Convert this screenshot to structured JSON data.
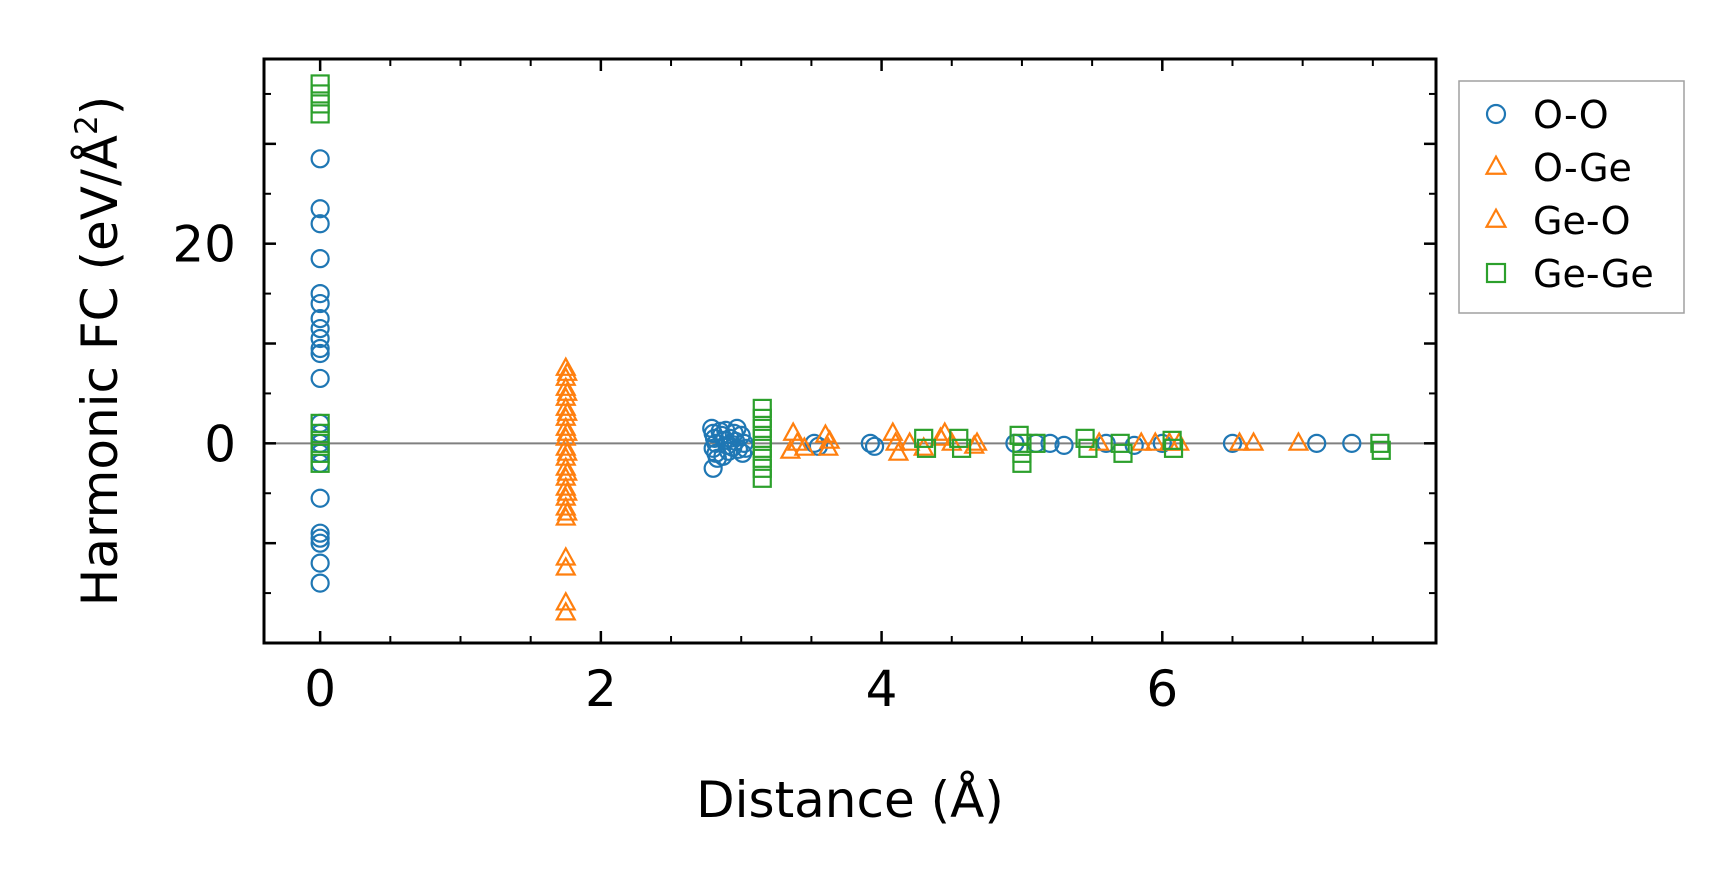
{
  "chart_data": {
    "type": "scatter",
    "title": "",
    "xlabel": "Distance (Å)",
    "ylabel_main": "Harmonic FC (eV/Å",
    "ylabel_sup": "2",
    "ylabel_tail": ")",
    "xlim": [
      -0.4,
      7.95
    ],
    "ylim": [
      -20,
      38.5
    ],
    "x_ticks": [
      0,
      2,
      4,
      6
    ],
    "x_tick_labels": [
      "0",
      "2",
      "4",
      "6"
    ],
    "y_ticks": [
      -10,
      0,
      10,
      20,
      30
    ],
    "y_tick_labels": [
      "",
      "0",
      "",
      "20",
      ""
    ],
    "x_minor_step": 0.5,
    "y_minor_step": 5,
    "grid": false,
    "zero_line": true,
    "legend_position": "outside-right",
    "series": [
      {
        "name": "O-O",
        "marker": "circle",
        "color": "#1f77b4",
        "points": [
          [
            0.0,
            28.5
          ],
          [
            0.0,
            23.5
          ],
          [
            0.0,
            22.0
          ],
          [
            0.0,
            18.5
          ],
          [
            0.0,
            15.0
          ],
          [
            0.0,
            14.0
          ],
          [
            0.0,
            12.5
          ],
          [
            0.0,
            11.5
          ],
          [
            0.0,
            10.5
          ],
          [
            0.0,
            9.5
          ],
          [
            0.0,
            9.0
          ],
          [
            0.0,
            6.5
          ],
          [
            0.0,
            2.0
          ],
          [
            0.0,
            1.0
          ],
          [
            0.0,
            0.0
          ],
          [
            0.0,
            -1.0
          ],
          [
            0.0,
            -2.0
          ],
          [
            0.0,
            -5.5
          ],
          [
            0.0,
            -9.0
          ],
          [
            0.0,
            -9.5
          ],
          [
            0.0,
            -10.0
          ],
          [
            0.0,
            -12.0
          ],
          [
            0.0,
            -14.0
          ],
          [
            2.79,
            1.5
          ],
          [
            2.8,
            1.0
          ],
          [
            2.81,
            0.5
          ],
          [
            2.82,
            0.0
          ],
          [
            2.8,
            -0.5
          ],
          [
            2.82,
            -1.0
          ],
          [
            2.83,
            -1.5
          ],
          [
            2.8,
            -2.5
          ],
          [
            2.85,
            1.2
          ],
          [
            2.86,
            0.8
          ],
          [
            2.88,
            0.3
          ],
          [
            2.9,
            -0.2
          ],
          [
            2.91,
            -0.8
          ],
          [
            2.89,
            1.3
          ],
          [
            2.92,
            0.5
          ],
          [
            2.94,
            -0.4
          ],
          [
            2.95,
            1.0
          ],
          [
            2.96,
            0.2
          ],
          [
            2.98,
            -0.6
          ],
          [
            3.0,
            0.8
          ],
          [
            3.02,
            0.0
          ],
          [
            3.03,
            -0.5
          ],
          [
            2.87,
            -1.3
          ],
          [
            2.97,
            1.5
          ],
          [
            3.01,
            -1.0
          ],
          [
            3.52,
            0.0
          ],
          [
            3.55,
            -0.3
          ],
          [
            3.92,
            0.0
          ],
          [
            3.95,
            -0.3
          ],
          [
            4.95,
            0.0
          ],
          [
            5.1,
            0.0
          ],
          [
            5.2,
            0.0
          ],
          [
            5.3,
            -0.2
          ],
          [
            5.6,
            0.0
          ],
          [
            5.8,
            -0.2
          ],
          [
            6.0,
            0.0
          ],
          [
            6.5,
            0.0
          ],
          [
            7.1,
            0.0
          ],
          [
            7.35,
            0.0
          ]
        ]
      },
      {
        "name": "O-Ge",
        "marker": "triangle",
        "color": "#ff7f0e",
        "points": [
          [
            1.75,
            7.5
          ],
          [
            1.75,
            6.5
          ],
          [
            1.75,
            5.5
          ],
          [
            1.75,
            4.5
          ],
          [
            1.75,
            3.5
          ],
          [
            1.75,
            2.5
          ],
          [
            1.75,
            1.5
          ],
          [
            1.75,
            0.5
          ],
          [
            1.75,
            -0.5
          ],
          [
            1.75,
            -1.5
          ],
          [
            1.75,
            -2.5
          ],
          [
            1.75,
            -3.5
          ],
          [
            1.75,
            -4.5
          ],
          [
            1.75,
            -5.5
          ],
          [
            1.75,
            -6.5
          ],
          [
            1.75,
            -7.5
          ],
          [
            1.75,
            -11.5
          ],
          [
            1.75,
            -12.5
          ],
          [
            1.75,
            -16.0
          ],
          [
            1.75,
            -17.0
          ],
          [
            3.37,
            1.0
          ],
          [
            3.4,
            0.0
          ],
          [
            3.45,
            -0.5
          ],
          [
            3.6,
            0.8
          ],
          [
            3.62,
            -0.5
          ],
          [
            4.08,
            1.0
          ],
          [
            4.1,
            0.0
          ],
          [
            4.12,
            -1.0
          ],
          [
            4.2,
            0.0
          ],
          [
            4.45,
            1.0
          ],
          [
            4.5,
            0.0
          ],
          [
            4.68,
            0.0
          ],
          [
            5.85,
            0.0
          ],
          [
            5.95,
            0.0
          ],
          [
            6.05,
            0.0
          ],
          [
            6.12,
            0.0
          ],
          [
            6.55,
            0.0
          ],
          [
            6.65,
            0.0
          ],
          [
            6.97,
            0.0
          ]
        ]
      },
      {
        "name": "Ge-O",
        "marker": "triangle",
        "color": "#ff7f0e",
        "points": [
          [
            1.76,
            7.0
          ],
          [
            1.76,
            5.0
          ],
          [
            1.76,
            3.0
          ],
          [
            1.76,
            1.0
          ],
          [
            1.76,
            -1.0
          ],
          [
            1.76,
            -3.0
          ],
          [
            1.76,
            -5.0
          ],
          [
            1.76,
            -7.0
          ],
          [
            3.35,
            -0.8
          ],
          [
            3.63,
            0.2
          ],
          [
            4.3,
            -0.5
          ],
          [
            4.42,
            0.5
          ],
          [
            4.66,
            -0.3
          ],
          [
            5.55,
            0.0
          ]
        ]
      },
      {
        "name": "Ge-Ge",
        "marker": "square",
        "color": "#2ca02c",
        "points": [
          [
            0.0,
            36.0
          ],
          [
            0.0,
            35.0
          ],
          [
            0.0,
            34.0
          ],
          [
            0.0,
            33.0
          ],
          [
            0.0,
            2.0
          ],
          [
            0.0,
            1.0
          ],
          [
            0.0,
            0.0
          ],
          [
            0.0,
            -1.0
          ],
          [
            0.0,
            -2.0
          ],
          [
            3.15,
            3.5
          ],
          [
            3.15,
            2.5
          ],
          [
            3.15,
            1.5
          ],
          [
            3.15,
            0.5
          ],
          [
            3.15,
            -0.5
          ],
          [
            3.15,
            -1.5
          ],
          [
            3.15,
            -2.5
          ],
          [
            3.15,
            -3.5
          ],
          [
            4.3,
            0.5
          ],
          [
            4.32,
            -0.5
          ],
          [
            4.55,
            0.5
          ],
          [
            4.57,
            -0.5
          ],
          [
            4.98,
            0.8
          ],
          [
            5.0,
            0.0
          ],
          [
            5.0,
            -1.0
          ],
          [
            5.0,
            -2.0
          ],
          [
            5.1,
            0.0
          ],
          [
            5.45,
            0.5
          ],
          [
            5.47,
            -0.5
          ],
          [
            5.7,
            0.0
          ],
          [
            5.72,
            -1.0
          ],
          [
            6.07,
            0.3
          ],
          [
            6.08,
            -0.5
          ],
          [
            7.55,
            0.0
          ],
          [
            7.56,
            -0.7
          ]
        ]
      }
    ]
  }
}
